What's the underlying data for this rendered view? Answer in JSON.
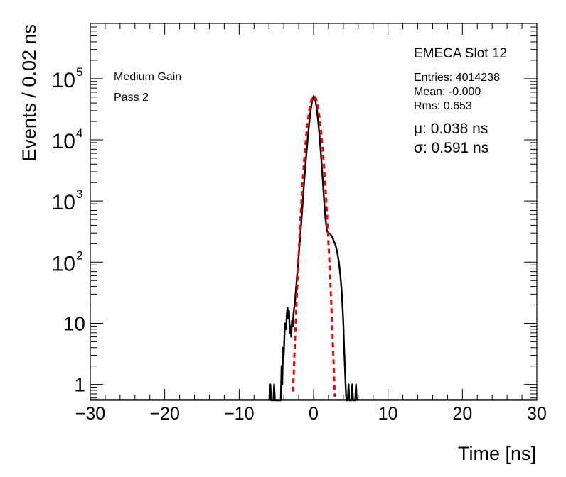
{
  "chart_data": {
    "type": "line",
    "title": "EMECA Slot 12",
    "xlabel": "Time [ns]",
    "ylabel": "Events / 0.02 ns",
    "xlim": [
      -30,
      30
    ],
    "ylim": [
      0.55,
      800000
    ],
    "yscale": "log",
    "x_ticks": [
      {
        "value": -30,
        "label": "−30"
      },
      {
        "value": -20,
        "label": "−20"
      },
      {
        "value": -10,
        "label": "−10"
      },
      {
        "value": 0,
        "label": "0"
      },
      {
        "value": 10,
        "label": "10"
      },
      {
        "value": 20,
        "label": "20"
      },
      {
        "value": 30,
        "label": "30"
      }
    ],
    "y_ticks": [
      {
        "value": 1,
        "label": "1"
      },
      {
        "value": 10,
        "label": "10"
      },
      {
        "value": 100,
        "label": "10",
        "exponent": "2"
      },
      {
        "value": 1000,
        "label": "10",
        "exponent": "3"
      },
      {
        "value": 10000,
        "label": "10",
        "exponent": "4"
      },
      {
        "value": 100000,
        "label": "10",
        "exponent": "5"
      }
    ],
    "annotations": {
      "gain": "Medium Gain",
      "pass": "Pass 2",
      "entries": "Entries: 4014238",
      "mean": "Mean: -0.000",
      "rms": "Rms: 0.653",
      "mu": "μ: 0.038 ns",
      "sigma": "σ: 0.591 ns"
    },
    "series": [
      {
        "name": "histogram",
        "color": "#000000",
        "style": "solid",
        "points": [
          [
            -5.9,
            0.55
          ],
          [
            -5.8,
            1
          ],
          [
            -5.7,
            0.55
          ],
          [
            -5.4,
            0.55
          ],
          [
            -5.3,
            1
          ],
          [
            -5.2,
            0.55
          ],
          [
            -4.4,
            0.55
          ],
          [
            -4.3,
            2
          ],
          [
            -4.2,
            1
          ],
          [
            -4.1,
            4
          ],
          [
            -4.0,
            3
          ],
          [
            -3.9,
            7
          ],
          [
            -3.8,
            10
          ],
          [
            -3.7,
            8
          ],
          [
            -3.6,
            14
          ],
          [
            -3.5,
            18
          ],
          [
            -3.4,
            12
          ],
          [
            -3.3,
            16
          ],
          [
            -3.2,
            7
          ],
          [
            -3.1,
            9
          ],
          [
            -3.0,
            6
          ],
          [
            -2.9,
            11
          ],
          [
            -2.8,
            9
          ],
          [
            -2.7,
            14
          ],
          [
            -2.6,
            18
          ],
          [
            -2.5,
            22
          ],
          [
            -2.4,
            32
          ],
          [
            -2.3,
            45
          ],
          [
            -2.2,
            65
          ],
          [
            -2.1,
            90
          ],
          [
            -2.0,
            130
          ],
          [
            -1.8,
            260
          ],
          [
            -1.6,
            550
          ],
          [
            -1.4,
            1200
          ],
          [
            -1.2,
            2600
          ],
          [
            -1.0,
            5200
          ],
          [
            -0.8,
            10000
          ],
          [
            -0.6,
            18000
          ],
          [
            -0.4,
            30000
          ],
          [
            -0.2,
            43000
          ],
          [
            0.0,
            52000
          ],
          [
            0.2,
            47000
          ],
          [
            0.4,
            34000
          ],
          [
            0.6,
            21000
          ],
          [
            0.8,
            11500
          ],
          [
            1.0,
            5500
          ],
          [
            1.2,
            2500
          ],
          [
            1.4,
            1050
          ],
          [
            1.6,
            520
          ],
          [
            1.8,
            320
          ],
          [
            2.0,
            300
          ],
          [
            2.2,
            290
          ],
          [
            2.4,
            270
          ],
          [
            2.6,
            240
          ],
          [
            2.8,
            210
          ],
          [
            3.0,
            180
          ],
          [
            3.2,
            140
          ],
          [
            3.4,
            100
          ],
          [
            3.6,
            60
          ],
          [
            3.8,
            30
          ],
          [
            4.0,
            10
          ],
          [
            4.1,
            4
          ],
          [
            4.2,
            2
          ],
          [
            4.3,
            1
          ],
          [
            4.4,
            0.55
          ],
          [
            4.6,
            0.55
          ],
          [
            4.7,
            1
          ],
          [
            4.8,
            0.55
          ],
          [
            5.1,
            0.55
          ],
          [
            5.2,
            1
          ],
          [
            5.3,
            0.55
          ],
          [
            5.6,
            0.55
          ],
          [
            5.7,
            1
          ],
          [
            5.8,
            0.55
          ]
        ]
      },
      {
        "name": "gaussian fit",
        "color": "#ff0000",
        "style": "dashed",
        "points": []
      }
    ],
    "fit": {
      "amplitude": 52000,
      "mean": 0.038,
      "sigma": 0.591,
      "x_range": [
        -3.0,
        3.0
      ]
    }
  }
}
